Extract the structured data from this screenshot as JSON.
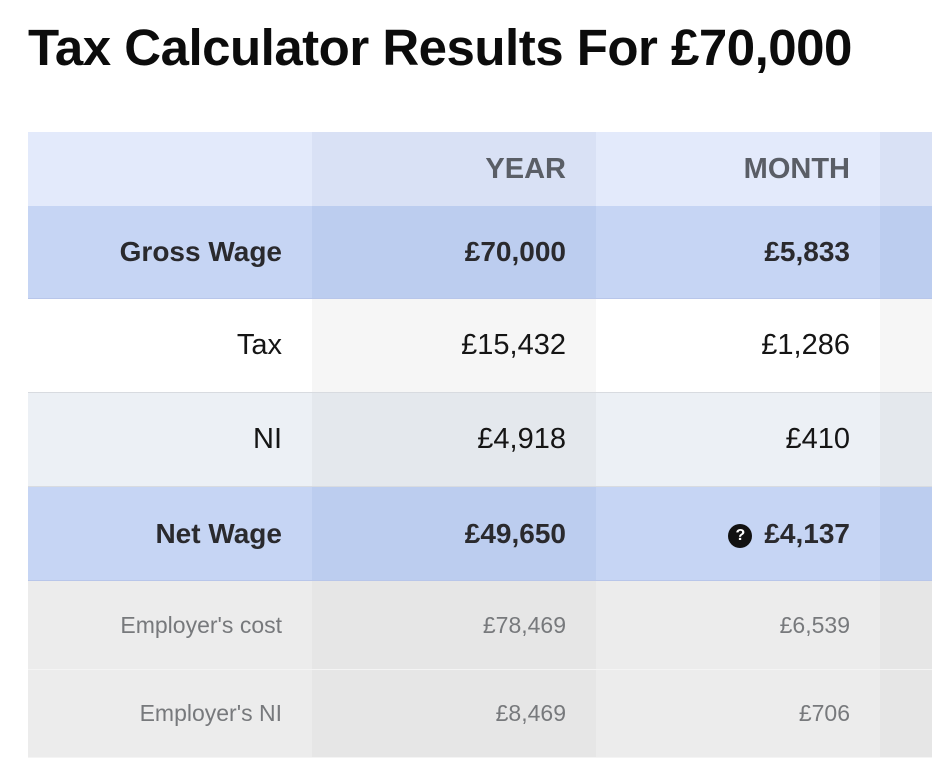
{
  "page": {
    "title": "Tax Calculator Results For £70,000"
  },
  "table": {
    "headers": [
      "",
      "YEAR",
      "MONTH"
    ],
    "rows": {
      "gross": {
        "label": "Gross Wage",
        "year": "£70,000",
        "month": "£5,833"
      },
      "tax": {
        "label": "Tax",
        "year": "£15,432",
        "month": "£1,286"
      },
      "ni": {
        "label": "NI",
        "year": "£4,918",
        "month": "£410"
      },
      "net": {
        "label": "Net Wage",
        "year": "£49,650",
        "month": "£4,137",
        "help_icon": "question-circle-icon"
      },
      "employer_cost": {
        "label": "Employer's cost",
        "year": "£78,469",
        "month": "£6,539"
      },
      "employer_ni": {
        "label": "Employer's NI",
        "year": "£8,469",
        "month": "£706"
      }
    }
  },
  "colors": {
    "highlight_row": "#c6d5f4",
    "header_row": "#e3eafb"
  }
}
